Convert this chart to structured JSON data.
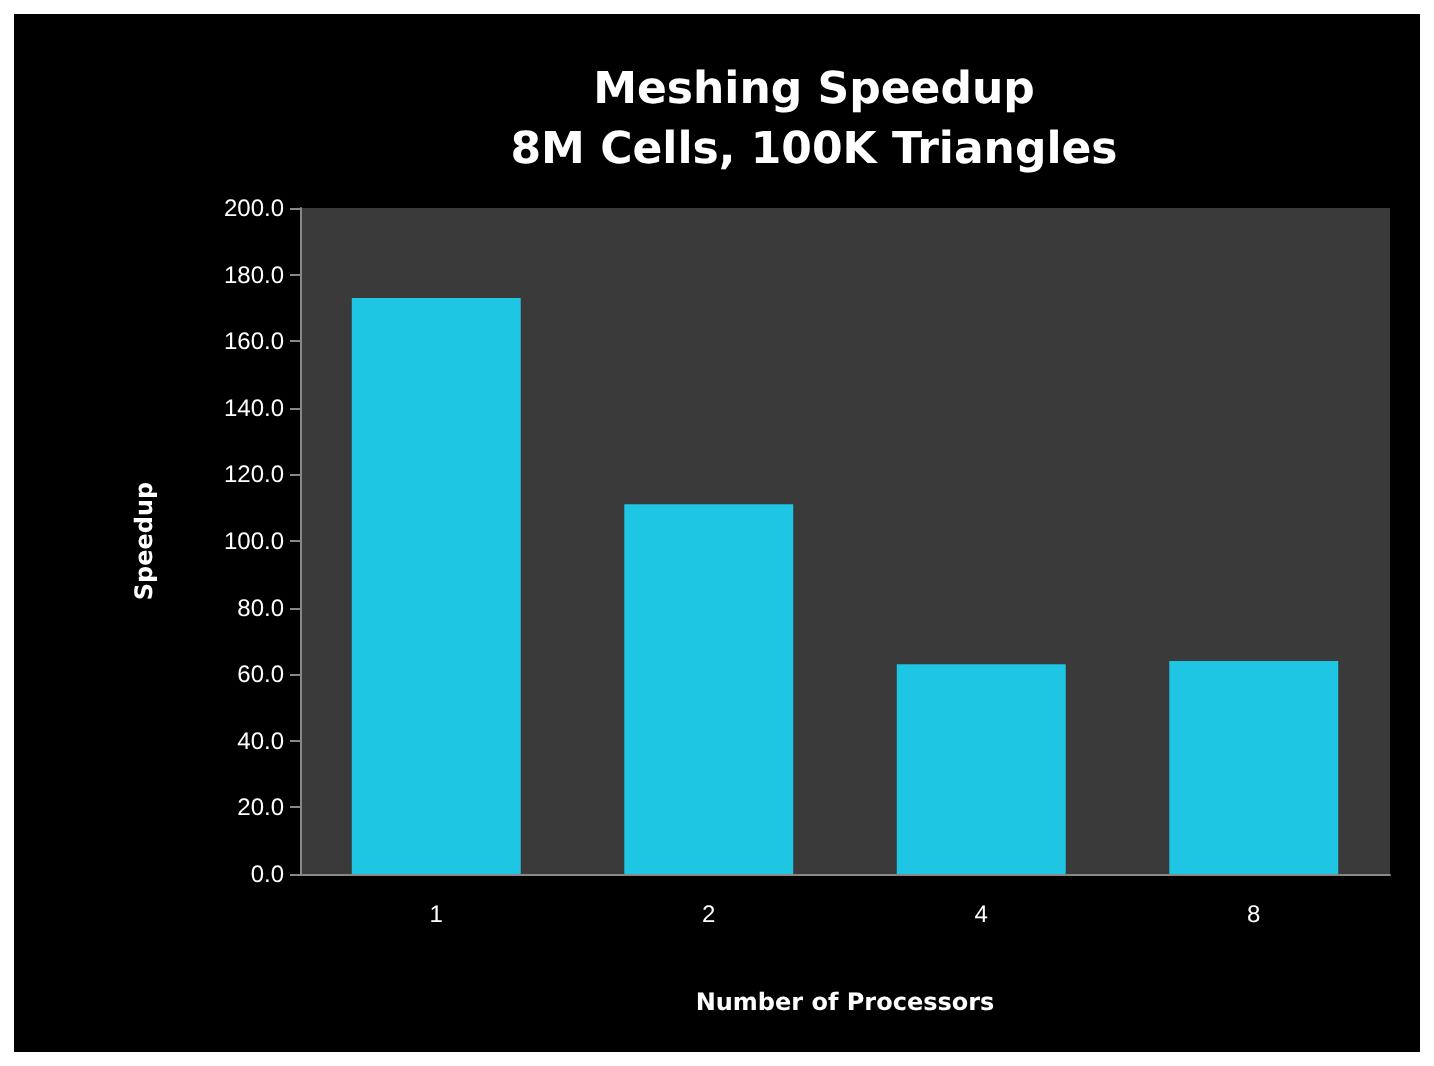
{
  "chart_data": {
    "type": "bar",
    "title": "Meshing Speedup\n8M Cells, 100K Triangles",
    "xlabel": "Number of Processors",
    "ylabel": "Speedup",
    "categories": [
      "1",
      "2",
      "4",
      "8"
    ],
    "values": [
      173,
      111,
      63,
      64
    ],
    "color": "#1ec6e4",
    "ylim": [
      0,
      200
    ],
    "yticks": [
      {
        "value": 0,
        "label": "0.0"
      },
      {
        "value": 20,
        "label": "20.0"
      },
      {
        "value": 40,
        "label": "40.0"
      },
      {
        "value": 60,
        "label": "60.0"
      },
      {
        "value": 80,
        "label": "80.0"
      },
      {
        "value": 100,
        "label": "100.0"
      },
      {
        "value": 120,
        "label": "120.0"
      },
      {
        "value": 140,
        "label": "140.0"
      },
      {
        "value": 160,
        "label": "160.0"
      },
      {
        "value": 180,
        "label": "180.0"
      },
      {
        "value": 200,
        "label": "200.0"
      }
    ],
    "grid": false
  }
}
